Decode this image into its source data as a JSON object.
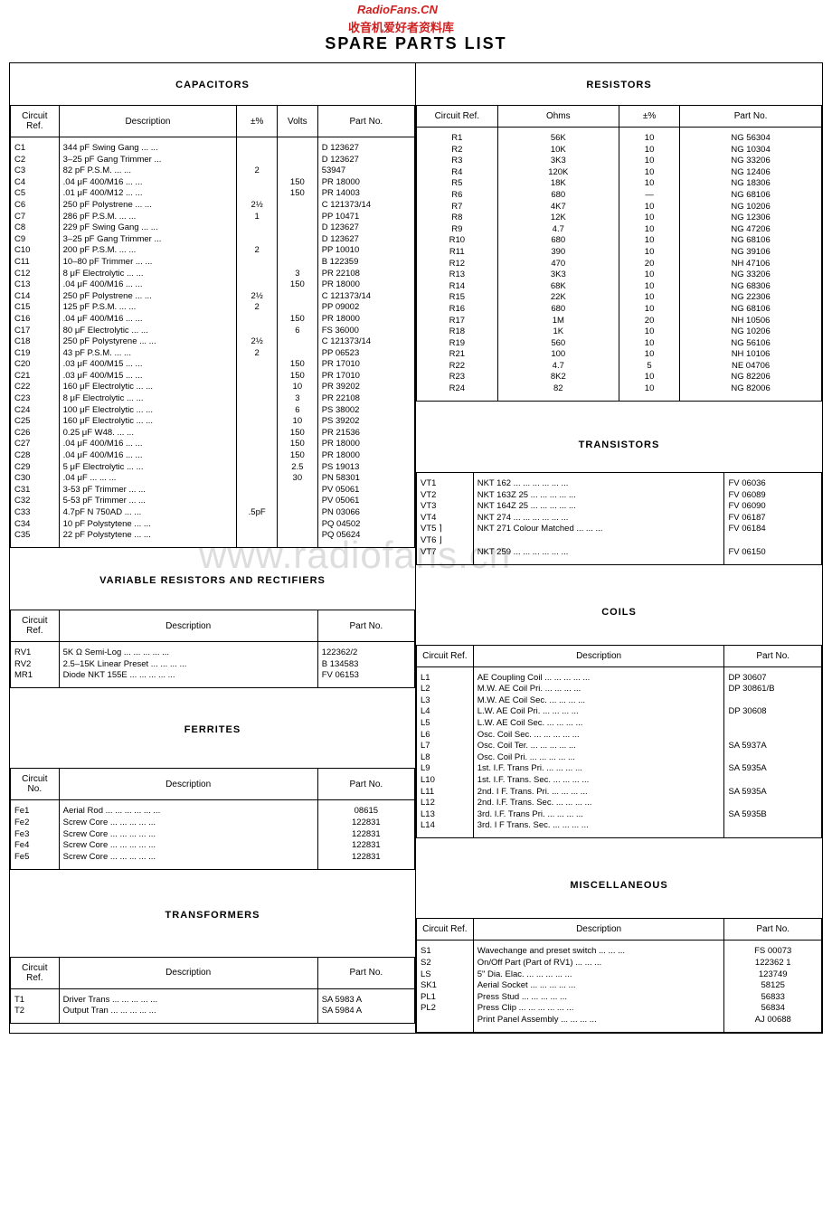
{
  "watermark1": "RadioFans.CN",
  "watermark2": "收音机爱好者资料库",
  "watermark3": "www.radiofans.cn",
  "title": "SPARE PARTS LIST",
  "capacitors": {
    "title": "CAPACITORS",
    "headers": [
      "Circuit Ref.",
      "Description",
      "±%",
      "Volts",
      "Part No."
    ],
    "rows": [
      [
        "C1",
        "344 pF Swing Gang   ...   ...",
        "",
        "",
        "D 123627"
      ],
      [
        "C2",
        "3–25 pF Gang Trimmer   ...",
        "",
        "",
        "D 123627"
      ],
      [
        "C3",
        "82 pF P.S.M.   ...   ...",
        "2",
        "",
        "53947"
      ],
      [
        "C4",
        ".04 μF 400/M16   ...   ...",
        "",
        "150",
        "PR 18000"
      ],
      [
        "C5",
        ".01 μF 400/M12   ...   ...",
        "",
        "150",
        "PR 14003"
      ],
      [
        "C6",
        "250 pF Polystrene   ...   ...",
        "2½",
        "",
        "C 121373/14"
      ],
      [
        "C7",
        "286 pF P.S.M.   ...   ...",
        "1",
        "",
        "PP 10471"
      ],
      [
        "C8",
        "229 pF Swing Gang   ...   ...",
        "",
        "",
        "D 123627"
      ],
      [
        "C9",
        "3–25 pF Gang Trimmer   ...",
        "",
        "",
        "D 123627"
      ],
      [
        "C10",
        "200 pF P.S.M.   ...   ...",
        "2",
        "",
        "PP 10010"
      ],
      [
        "C11",
        "10–80 pF Trimmer   ...   ...",
        "",
        "",
        "B 122359"
      ],
      [
        "C12",
        "8 μF Electrolytic   ...   ...",
        "",
        "3",
        "PR 22108"
      ],
      [
        "C13",
        ".04 μF 400/M16   ...   ...",
        "",
        "150",
        "PR 18000"
      ],
      [
        "C14",
        "250 pF Polystrene   ...   ...",
        "2½",
        "",
        "C 121373/14"
      ],
      [
        "C15",
        "125 pF P.S.M.   ...   ...",
        "2",
        "",
        "PP 09002"
      ],
      [
        "C16",
        ".04 μF 400/M16   ...   ...",
        "",
        "150",
        "PR 18000"
      ],
      [
        "C17",
        "80 μF Electrolytic   ...   ...",
        "",
        "6",
        "FS 36000"
      ],
      [
        "C18",
        "250 pF Polystyrene   ...   ...",
        "2½",
        "",
        "C 121373/14"
      ],
      [
        "C19",
        "43 pF P.S.M.   ...   ...",
        "2",
        "",
        "PP 06523"
      ],
      [
        "C20",
        ".03 μF 400/M15   ...   ...",
        "",
        "150",
        "PR 17010"
      ],
      [
        "C21",
        ".03 μF 400/M15   ...   ...",
        "",
        "150",
        "PR 17010"
      ],
      [
        "C22",
        "160 μF Electrolytic   ...   ...",
        "",
        "10",
        "PR 39202"
      ],
      [
        "C23",
        "8 μF Electrolytic   ...   ...",
        "",
        "3",
        "PR 22108"
      ],
      [
        "C24",
        "100 μF Electrolytic   ...   ...",
        "",
        "6",
        "PS 38002"
      ],
      [
        "C25",
        "160 μF Electrolytic   ...   ...",
        "",
        "10",
        "PS 39202"
      ],
      [
        "C26",
        "0.25 μF W48.   ...   ...",
        "",
        "150",
        "PR 21536"
      ],
      [
        "C27",
        ".04 μF 400/M16   ...   ...",
        "",
        "150",
        "PR 18000"
      ],
      [
        "C28",
        ".04 μF 400/M16   ...   ...",
        "",
        "150",
        "PR 18000"
      ],
      [
        "C29",
        "5 μF Electrolytic   ...   ...",
        "",
        "2.5",
        "PS 19013"
      ],
      [
        "C30",
        ".04 μF   ...   ...   ...",
        "",
        "30",
        "PN 58301"
      ],
      [
        "C31",
        "3-53 pF Trimmer   ...   ...",
        "",
        "",
        "PV 05061"
      ],
      [
        "C32",
        "5-53 pF Trimmer   ...   ...",
        "",
        "",
        "PV 05061"
      ],
      [
        "C33",
        "4.7pF N 750AD   ...   ...",
        ".5pF",
        "",
        "PN 03066"
      ],
      [
        "C34",
        "10 pF Polystytene   ...   ...",
        "",
        "",
        "PQ 04502"
      ],
      [
        "C35",
        "22 pF Polystytene   ...   ...",
        "",
        "",
        "PQ 05624"
      ]
    ]
  },
  "resistors": {
    "title": "RESISTORS",
    "headers": [
      "Circuit Ref.",
      "Ohms",
      "±%",
      "Part No."
    ],
    "rows": [
      [
        "R1",
        "56K",
        "10",
        "NG 56304"
      ],
      [
        "R2",
        "10K",
        "10",
        "NG 10304"
      ],
      [
        "R3",
        "3K3",
        "10",
        "NG 33206"
      ],
      [
        "R4",
        "120K",
        "10",
        "NG 12406"
      ],
      [
        "R5",
        "18K",
        "10",
        "NG 18306"
      ],
      [
        "R6",
        "680",
        "—",
        "NG 68106"
      ],
      [
        "R7",
        "4K7",
        "10",
        "NG 10206"
      ],
      [
        "R8",
        "12K",
        "10",
        "NG 12306"
      ],
      [
        "R9",
        "4.7",
        "10",
        "NG 47206"
      ],
      [
        "R10",
        "680",
        "10",
        "NG 68106"
      ],
      [
        "R11",
        "390",
        "10",
        "NG 39106"
      ],
      [
        "R12",
        "470",
        "20",
        "NH 47106"
      ],
      [
        "R13",
        "3K3",
        "10",
        "NG 33206"
      ],
      [
        "R14",
        "68K",
        "10",
        "NG 68306"
      ],
      [
        "R15",
        "22K",
        "10",
        "NG 22306"
      ],
      [
        "R16",
        "680",
        "10",
        "NG 68106"
      ],
      [
        "R17",
        "1M",
        "20",
        "NH 10506"
      ],
      [
        "R18",
        "1K",
        "10",
        "NG 10206"
      ],
      [
        "R19",
        "560",
        "10",
        "NG 56106"
      ],
      [
        "R21",
        "100",
        "10",
        "NH 10106"
      ],
      [
        "R22",
        "4.7",
        "5",
        "NE 04706"
      ],
      [
        "R23",
        "8K2",
        "10",
        "NG 82206"
      ],
      [
        "R24",
        "82",
        "10",
        "NG 82006"
      ]
    ]
  },
  "varres": {
    "title": "VARIABLE RESISTORS AND RECTIFIERS",
    "headers": [
      "Circuit Ref.",
      "Description",
      "Part No."
    ],
    "rows": [
      [
        "RV1",
        "5K Ω Semi-Log   ...   ...   ...   ...   ...",
        "122362/2"
      ],
      [
        "RV2",
        "2.5–15K Linear Preset   ...   ...   ...   ...",
        "B 134583"
      ],
      [
        "MR1",
        "Diode NKT 155E ...   ...   ...   ...   ...",
        "FV 06153"
      ]
    ]
  },
  "transistors": {
    "title": "TRANSISTORS",
    "rows": [
      [
        "VT1",
        "NKT 162   ...   ...   ...   ...   ...   ...",
        "FV 06036"
      ],
      [
        "VT2",
        "NKT 163Z 25   ...   ...   ...   ...   ...",
        "FV 06089"
      ],
      [
        "VT3",
        "NKT 164Z 25   ...   ...   ...   ...   ...",
        "FV 06090"
      ],
      [
        "VT4",
        "NKT 274   ...   ...   ...   ...   ...   ...",
        "FV 06187"
      ],
      [
        "VT5 ⌉",
        "NKT 271 Colour Matched   ...   ...   ...",
        "FV 06184"
      ],
      [
        "VT6 ⌋",
        "",
        ""
      ],
      [
        "VT7",
        "NKT 259   ...   ...   ...   ...   ...   ...",
        "FV 06150"
      ]
    ]
  },
  "ferrites": {
    "title": "FERRITES",
    "headers": [
      "Circuit No.",
      "Description",
      "Part No."
    ],
    "rows": [
      [
        "Fe1",
        "Aerial Rod ...   ...   ...   ...   ...   ...",
        "08615"
      ],
      [
        "Fe2",
        "Screw Core   ...   ...   ...   ...   ...",
        "122831"
      ],
      [
        "Fe3",
        "Screw Core   ...   ...   ...   ...   ...",
        "122831"
      ],
      [
        "Fe4",
        "Screw Core   ...   ...   ...   ...   ...",
        "122831"
      ],
      [
        "Fe5",
        "Screw Core   ...   ...   ...   ...   ...",
        "122831"
      ]
    ]
  },
  "coils": {
    "title": "COILS",
    "headers": [
      "Circuit Ref.",
      "Description",
      "Part No."
    ],
    "rows": [
      [
        "L1",
        "AE Coupling Coil ...   ...   ...   ...   ...",
        "DP 30607"
      ],
      [
        "L2",
        "M.W. AE Coil Pri.   ...   ...   ...   ...",
        "DP 30861/B"
      ],
      [
        "L3",
        "M.W. AE Coil Sec.   ...   ...   ...   ...",
        ""
      ],
      [
        "L4",
        "L.W. AE Coil Pri.   ...   ...   ...   ...",
        "DP 30608"
      ],
      [
        "L5",
        "L.W. AE Coil Sec.   ...   ...   ...   ...",
        ""
      ],
      [
        "L6",
        "Osc. Coil Sec.   ...   ...   ...   ...   ...",
        ""
      ],
      [
        "L7",
        "Osc. Coil Ter.   ...   ...   ...   ...   ...",
        "SA 5937A"
      ],
      [
        "L8",
        "Osc. Coil Pri.   ...   ...   ...   ...   ...",
        ""
      ],
      [
        "L9",
        "1st. I.F. Trans Pri.   ...   ...   ...   ...",
        "SA 5935A"
      ],
      [
        "L10",
        "1st. I.F. Trans. Sec.   ...   ...   ...   ...",
        ""
      ],
      [
        "L11",
        "2nd. I F. Trans. Pri.   ...   ...   ...   ...",
        "SA 5935A"
      ],
      [
        "L12",
        "2nd. I.F. Trans. Sec.   ...   ...   ...   ...",
        ""
      ],
      [
        "L13",
        "3rd. I.F. Trans Pri.   ...   ...   ...   ...",
        "SA 5935B"
      ],
      [
        "L14",
        "3rd. I F Trans. Sec.   ...   ...   ...   ...",
        ""
      ]
    ]
  },
  "transformers": {
    "title": "TRANSFORMERS",
    "headers": [
      "Circuit Ref.",
      "Description",
      "Part No."
    ],
    "rows": [
      [
        "T1",
        "Driver Trans   ...   ...   ...   ...   ...",
        "SA 5983 A"
      ],
      [
        "T2",
        "Output Tran   ...   ...   ...   ...   ...",
        "SA 5984 A"
      ]
    ]
  },
  "misc": {
    "title": "MISCELLANEOUS",
    "headers": [
      "Circuit Ref.",
      "Description",
      "Part No."
    ],
    "rows": [
      [
        "S1",
        "Wavechange and preset switch ...   ...   ...",
        "FS 00073"
      ],
      [
        "S2",
        "On/Off Part (Part of RV1)   ...   ...   ...",
        "122362 1"
      ],
      [
        "LS",
        "5\" Dia. Elac.   ...   ...   ...   ...   ...",
        "123749"
      ],
      [
        "SK1",
        "Aerial Socket   ...   ...   ...   ...   ...",
        "58125"
      ],
      [
        "PL1",
        "Press Stud   ...   ...   ...   ...   ...",
        "56833"
      ],
      [
        "PL2",
        "Press Clip ...   ...   ...   ...   ...   ...",
        "56834"
      ],
      [
        "",
        "Print Panel Assembly   ...   ...   ...   ...",
        "AJ 00688"
      ]
    ]
  }
}
